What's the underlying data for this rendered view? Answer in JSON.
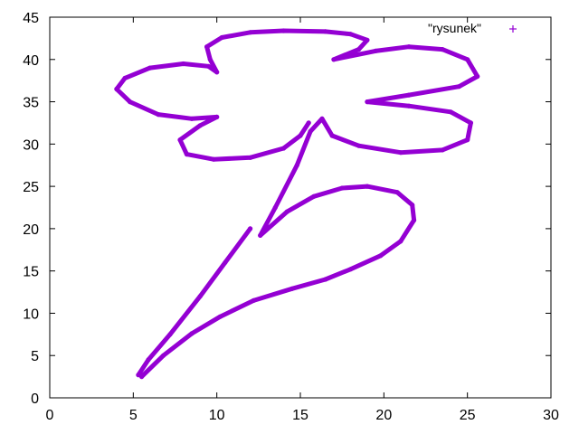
{
  "chart_data": {
    "type": "scatter",
    "title": "",
    "xlabel": "",
    "ylabel": "",
    "xlim": [
      0,
      30
    ],
    "ylim": [
      0,
      45
    ],
    "x_ticks": [
      0,
      5,
      10,
      15,
      20,
      25,
      30
    ],
    "y_ticks": [
      0,
      5,
      10,
      15,
      20,
      25,
      30,
      35,
      40,
      45
    ],
    "grid": false,
    "legend_position": "top-right",
    "series": [
      {
        "name": "\"rysunek\"",
        "marker": "+",
        "color": "#9400D3",
        "segments": [
          [
            [
              5.5,
              2.5
            ],
            [
              6.8,
              5.0
            ],
            [
              8.5,
              7.6
            ],
            [
              10.2,
              9.6
            ],
            [
              12.2,
              11.5
            ],
            [
              14.5,
              12.9
            ],
            [
              16.5,
              14.0
            ],
            [
              18.0,
              15.2
            ],
            [
              19.8,
              16.8
            ],
            [
              21.0,
              18.5
            ],
            [
              21.8,
              21.0
            ],
            [
              21.7,
              22.8
            ],
            [
              20.8,
              24.3
            ],
            [
              19.0,
              25.0
            ],
            [
              17.5,
              24.8
            ],
            [
              15.8,
              23.8
            ],
            [
              14.2,
              22.0
            ],
            [
              12.6,
              19.2
            ],
            [
              13.5,
              22.5
            ],
            [
              14.8,
              27.5
            ],
            [
              15.6,
              31.5
            ],
            [
              16.3,
              33.0
            ],
            [
              16.9,
              31.0
            ],
            [
              18.5,
              29.8
            ],
            [
              21.0,
              29.0
            ],
            [
              23.5,
              29.3
            ],
            [
              25.0,
              30.5
            ],
            [
              25.2,
              32.5
            ],
            [
              24.0,
              33.8
            ],
            [
              21.5,
              34.5
            ],
            [
              19.0,
              35.0
            ],
            [
              21.5,
              35.8
            ],
            [
              24.5,
              36.8
            ],
            [
              25.6,
              38.0
            ],
            [
              25.0,
              40.0
            ],
            [
              23.5,
              41.2
            ],
            [
              21.5,
              41.5
            ],
            [
              19.5,
              41.0
            ],
            [
              17.0,
              40.0
            ],
            [
              18.5,
              41.2
            ],
            [
              19.0,
              42.3
            ],
            [
              18.0,
              43.0
            ],
            [
              16.5,
              43.3
            ],
            [
              14.0,
              43.4
            ],
            [
              12.0,
              43.2
            ],
            [
              10.3,
              42.6
            ],
            [
              9.4,
              41.5
            ],
            [
              9.6,
              40.0
            ],
            [
              10.0,
              38.5
            ],
            [
              9.5,
              39.2
            ],
            [
              8.0,
              39.5
            ],
            [
              6.0,
              39.0
            ],
            [
              4.5,
              37.8
            ],
            [
              4.0,
              36.5
            ],
            [
              4.8,
              35.0
            ],
            [
              6.5,
              33.5
            ],
            [
              8.5,
              33.0
            ],
            [
              10.0,
              33.2
            ],
            [
              9.0,
              32.2
            ],
            [
              7.8,
              30.5
            ],
            [
              8.2,
              28.8
            ],
            [
              9.8,
              28.2
            ],
            [
              12.0,
              28.4
            ],
            [
              14.0,
              29.5
            ],
            [
              15.0,
              31.0
            ],
            [
              15.5,
              32.5
            ]
          ],
          [
            [
              12.0,
              20.0
            ],
            [
              10.5,
              16.0
            ],
            [
              9.0,
              12.0
            ],
            [
              7.2,
              7.5
            ],
            [
              5.9,
              4.5
            ],
            [
              5.3,
              2.7
            ]
          ]
        ]
      }
    ]
  }
}
